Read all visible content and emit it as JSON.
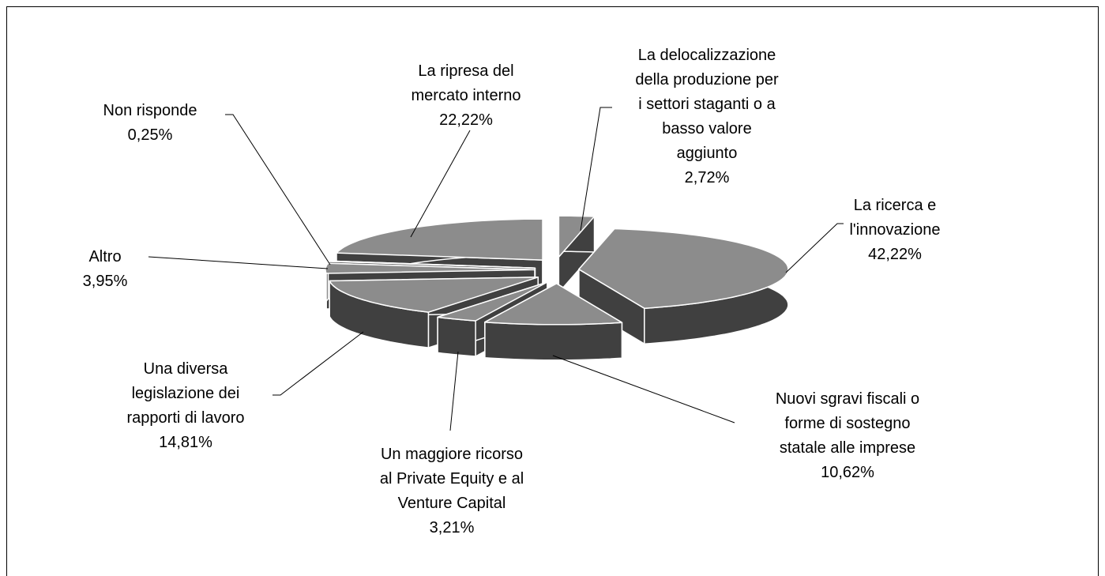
{
  "chart_data": {
    "type": "pie3d",
    "categories": [
      [
        "La delocalizzazione",
        "della produzione per",
        "i settori staganti o a",
        "basso valore",
        "aggiunto"
      ],
      [
        "La ricerca e",
        "l'innovazione"
      ],
      [
        "Nuovi sgravi fiscali o",
        "forme di sostegno",
        "statale alle imprese"
      ],
      [
        "Un maggiore ricorso",
        "al Private Equity e al",
        "Venture Capital"
      ],
      [
        "Una diversa",
        "legislazione dei",
        "rapporti di lavoro"
      ],
      [
        "Altro"
      ],
      [
        "Non risponde"
      ],
      [
        "La ripresa del",
        "mercato interno"
      ]
    ],
    "values": [
      2.72,
      42.22,
      10.62,
      3.21,
      14.81,
      3.95,
      0.25,
      22.22
    ],
    "value_labels": [
      "2,72%",
      "42,22%",
      "10,62%",
      "3,21%",
      "14,81%",
      "3,95%",
      "0,25%",
      "22,22%"
    ],
    "color": "#8c8c8c",
    "side_color": "#404040"
  }
}
